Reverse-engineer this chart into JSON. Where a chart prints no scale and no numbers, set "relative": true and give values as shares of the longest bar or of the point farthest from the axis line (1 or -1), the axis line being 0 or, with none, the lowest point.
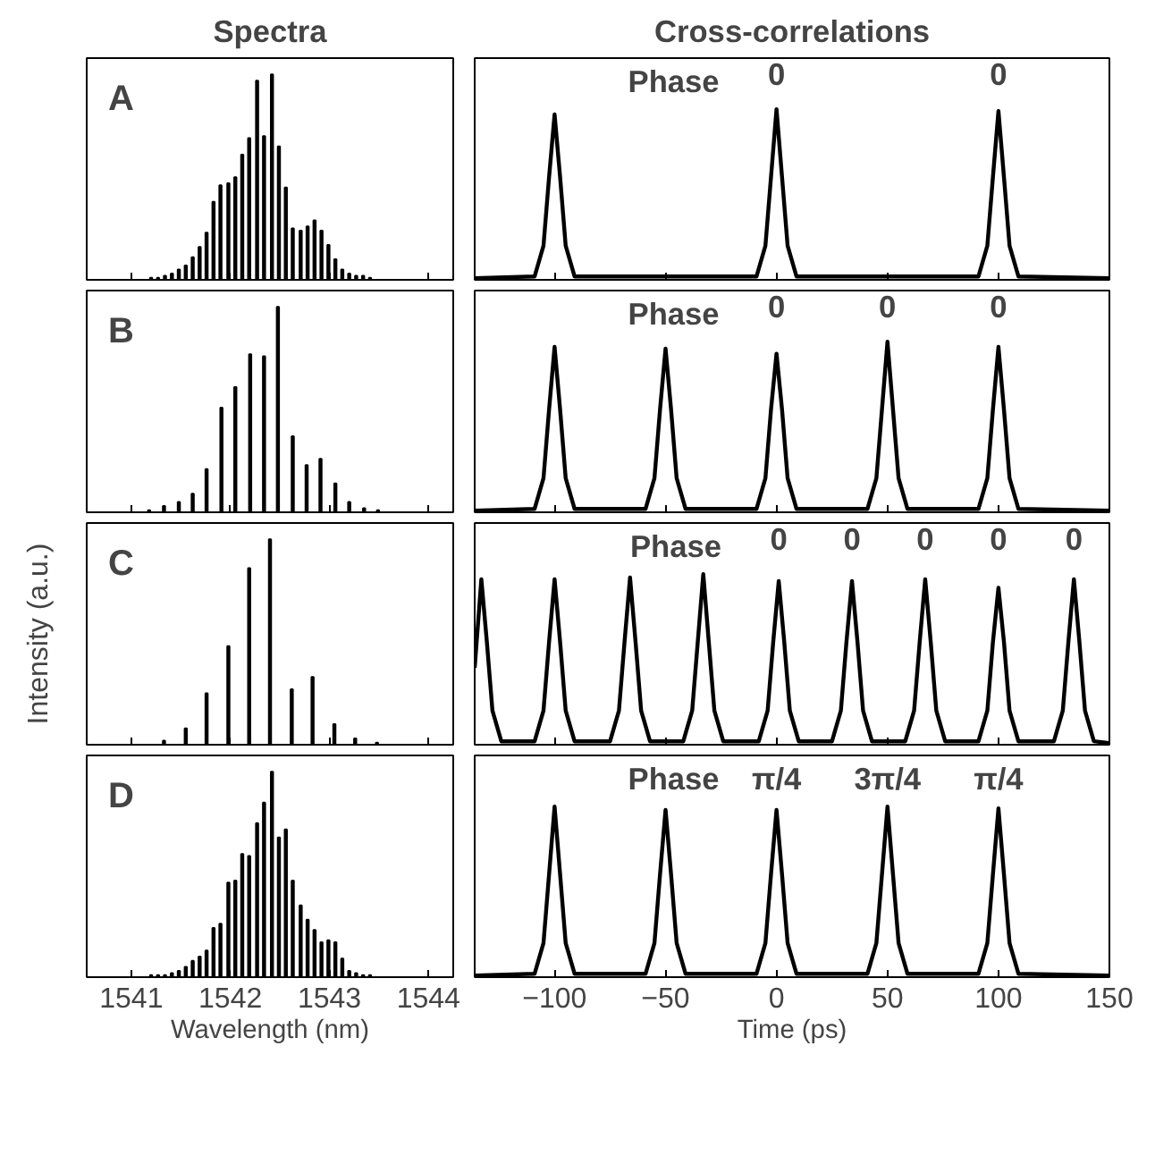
{
  "chart_data": [
    {
      "type": "bar",
      "title": "Spectra",
      "relative": true,
      "xlim": [
        1540.55,
        1544.25
      ],
      "xticks": [
        1541,
        1542,
        1543,
        1544
      ],
      "tick_labels": false,
      "annotations": [
        "A"
      ],
      "series": [
        {
          "color": "#000000",
          "x": [
            1541.2,
            1541.27,
            1541.34,
            1541.41,
            1541.48,
            1541.55,
            1541.62,
            1541.69,
            1541.76,
            1541.83,
            1541.9,
            1541.98,
            1542.05,
            1542.12,
            1542.19,
            1542.27,
            1542.34,
            1542.42,
            1542.49,
            1542.56,
            1542.63,
            1542.71,
            1542.78,
            1542.85,
            1542.92,
            1542.99,
            1543.06,
            1543.13,
            1543.2,
            1543.27,
            1543.34,
            1543.41
          ],
          "values": [
            0.01,
            0.01,
            0.02,
            0.03,
            0.05,
            0.07,
            0.11,
            0.16,
            0.23,
            0.38,
            0.46,
            0.47,
            0.5,
            0.61,
            0.69,
            0.97,
            0.7,
            1.0,
            0.65,
            0.45,
            0.25,
            0.24,
            0.26,
            0.29,
            0.24,
            0.17,
            0.1,
            0.05,
            0.03,
            0.02,
            0.02,
            0.01
          ]
        }
      ]
    },
    {
      "type": "line",
      "title": "Cross-correlations",
      "relative": true,
      "xlim": [
        -136,
        150
      ],
      "xticks": [
        -100,
        -50,
        0,
        50,
        100,
        150
      ],
      "tick_labels": false,
      "annotations": [
        "Phase",
        "0",
        "0"
      ],
      "series": [
        {
          "color": "#000000",
          "x": [
            -136,
            -109,
            -105,
            -102.5,
            -100,
            -97.5,
            -95,
            -91,
            -9,
            -5,
            -2.5,
            0,
            2.5,
            5,
            9,
            91,
            95,
            97.5,
            100,
            102.5,
            105,
            109,
            150
          ],
          "values": [
            0.01,
            0.02,
            0.2,
            0.6,
            0.97,
            0.6,
            0.2,
            0.02,
            0.02,
            0.2,
            0.6,
            1.0,
            0.6,
            0.2,
            0.02,
            0.02,
            0.2,
            0.6,
            0.99,
            0.6,
            0.2,
            0.02,
            0.01
          ]
        }
      ]
    },
    {
      "type": "bar",
      "relative": true,
      "xlim": [
        1540.55,
        1544.25
      ],
      "xticks": [
        1541,
        1542,
        1543,
        1544
      ],
      "tick_labels": false,
      "annotations": [
        "B"
      ],
      "series": [
        {
          "color": "#000000",
          "x": [
            1541.18,
            1541.33,
            1541.48,
            1541.62,
            1541.76,
            1541.91,
            1542.05,
            1542.2,
            1542.34,
            1542.48,
            1542.63,
            1542.77,
            1542.91,
            1543.06,
            1543.2,
            1543.35,
            1543.49
          ],
          "values": [
            0.01,
            0.03,
            0.05,
            0.09,
            0.21,
            0.51,
            0.61,
            0.77,
            0.76,
            1.0,
            0.37,
            0.23,
            0.26,
            0.14,
            0.05,
            0.02,
            0.01
          ]
        }
      ]
    },
    {
      "type": "line",
      "relative": true,
      "xlim": [
        -136,
        150
      ],
      "xticks": [
        -100,
        -50,
        0,
        50,
        100,
        150
      ],
      "tick_labels": false,
      "annotations": [
        "Phase",
        "0",
        "0",
        "0"
      ],
      "series": [
        {
          "color": "#000000",
          "x": [
            -136,
            -109,
            -105,
            -102.5,
            -100,
            -97.5,
            -95,
            -91,
            -59,
            -55,
            -52.5,
            -50,
            -47.5,
            -45,
            -41,
            -9,
            -5,
            -2.5,
            0,
            2.5,
            5,
            9,
            41,
            45,
            47.5,
            50,
            52.5,
            55,
            59,
            91,
            95,
            97.5,
            100,
            102.5,
            105,
            109,
            150
          ],
          "values": [
            0.01,
            0.02,
            0.2,
            0.6,
            0.97,
            0.6,
            0.2,
            0.02,
            0.02,
            0.2,
            0.6,
            0.96,
            0.6,
            0.2,
            0.02,
            0.02,
            0.2,
            0.6,
            0.93,
            0.6,
            0.2,
            0.02,
            0.02,
            0.2,
            0.6,
            1.0,
            0.6,
            0.2,
            0.02,
            0.02,
            0.2,
            0.6,
            0.97,
            0.6,
            0.2,
            0.02,
            0.01
          ]
        }
      ]
    },
    {
      "type": "bar",
      "ylabel": "Intensity (a.u.)",
      "relative": true,
      "xlim": [
        1540.55,
        1544.25
      ],
      "xticks": [
        1541,
        1542,
        1543,
        1544
      ],
      "tick_labels": false,
      "annotations": [
        "C"
      ],
      "series": [
        {
          "color": "#000000",
          "x": [
            1541.33,
            1541.55,
            1541.76,
            1541.98,
            1542.19,
            1542.4,
            1542.62,
            1542.83,
            1543.05,
            1543.26,
            1543.48
          ],
          "values": [
            0.02,
            0.08,
            0.25,
            0.48,
            0.86,
            1.0,
            0.27,
            0.33,
            0.1,
            0.03,
            0.01
          ]
        }
      ]
    },
    {
      "type": "line",
      "relative": true,
      "xlim": [
        -136,
        150
      ],
      "xticks": [
        -100,
        -50,
        0,
        50,
        100,
        150
      ],
      "tick_labels": false,
      "annotations": [
        "Phase",
        "0",
        "0",
        "0",
        "0",
        "0"
      ],
      "series": [
        {
          "color": "#000000",
          "x": [
            -136,
            -133,
            -130.5,
            -128,
            -124,
            -109,
            -105,
            -102.5,
            -100,
            -97.5,
            -95,
            -91,
            -75,
            -71,
            -68.5,
            -66,
            -63.5,
            -61,
            -57,
            -42,
            -38,
            -35.5,
            -33,
            -30.5,
            -28,
            -24,
            -8,
            -4,
            -1.5,
            1,
            3.5,
            6,
            10,
            25,
            29,
            31.5,
            34,
            36.5,
            39,
            43,
            58,
            62,
            64.5,
            67,
            69.5,
            72,
            76,
            91,
            95,
            97.5,
            100,
            102.5,
            105,
            109,
            125,
            129,
            131.5,
            134,
            136.5,
            139,
            143,
            150
          ],
          "values": [
            0.45,
            0.97,
            0.6,
            0.2,
            0.02,
            0.02,
            0.2,
            0.6,
            0.97,
            0.6,
            0.2,
            0.02,
            0.02,
            0.2,
            0.6,
            0.98,
            0.6,
            0.2,
            0.02,
            0.02,
            0.2,
            0.6,
            1.0,
            0.6,
            0.2,
            0.02,
            0.02,
            0.2,
            0.6,
            0.96,
            0.6,
            0.2,
            0.02,
            0.02,
            0.2,
            0.6,
            0.96,
            0.6,
            0.2,
            0.02,
            0.02,
            0.2,
            0.6,
            0.97,
            0.6,
            0.2,
            0.02,
            0.02,
            0.2,
            0.6,
            0.92,
            0.6,
            0.2,
            0.02,
            0.02,
            0.2,
            0.6,
            0.97,
            0.6,
            0.2,
            0.02,
            0.01
          ]
        }
      ]
    },
    {
      "type": "bar",
      "xlabel": "Wavelength (nm)",
      "relative": true,
      "xlim": [
        1540.55,
        1544.25
      ],
      "xticks": [
        1541,
        1542,
        1543,
        1544
      ],
      "tick_labels": "x",
      "annotations": [
        "D"
      ],
      "series": [
        {
          "color": "#000000",
          "x": [
            1541.2,
            1541.27,
            1541.34,
            1541.41,
            1541.48,
            1541.55,
            1541.62,
            1541.69,
            1541.76,
            1541.83,
            1541.9,
            1541.98,
            1542.05,
            1542.12,
            1542.19,
            1542.27,
            1542.34,
            1542.42,
            1542.49,
            1542.56,
            1542.63,
            1542.71,
            1542.78,
            1542.85,
            1542.92,
            1542.99,
            1543.06,
            1543.13,
            1543.2,
            1543.27,
            1543.34,
            1543.41
          ],
          "values": [
            0.01,
            0.01,
            0.01,
            0.02,
            0.03,
            0.05,
            0.08,
            0.1,
            0.13,
            0.24,
            0.26,
            0.46,
            0.47,
            0.6,
            0.59,
            0.75,
            0.85,
            1.0,
            0.68,
            0.72,
            0.47,
            0.35,
            0.28,
            0.23,
            0.17,
            0.18,
            0.17,
            0.09,
            0.03,
            0.02,
            0.01,
            0.01
          ]
        }
      ]
    },
    {
      "type": "line",
      "xlabel": "Time (ps)",
      "relative": true,
      "xlim": [
        -136,
        150
      ],
      "xticks": [
        -100,
        -50,
        0,
        50,
        100,
        150
      ],
      "tick_labels": "x",
      "annotations": [
        "Phase",
        "π/4",
        "3π/4",
        "π/4"
      ],
      "series": [
        {
          "color": "#000000",
          "x": [
            -136,
            -109,
            -105,
            -102.5,
            -100,
            -97.5,
            -95,
            -91,
            -59,
            -55,
            -52.5,
            -50,
            -47.5,
            -45,
            -41,
            -9,
            -5,
            -2.5,
            0,
            2.5,
            5,
            9,
            41,
            45,
            47.5,
            50,
            52.5,
            55,
            59,
            91,
            95,
            97.5,
            100,
            102.5,
            105,
            109,
            150
          ],
          "values": [
            0.01,
            0.02,
            0.2,
            0.6,
            1.0,
            0.6,
            0.2,
            0.02,
            0.02,
            0.2,
            0.6,
            0.98,
            0.6,
            0.2,
            0.02,
            0.02,
            0.2,
            0.6,
            0.98,
            0.6,
            0.2,
            0.02,
            0.02,
            0.2,
            0.6,
            1.0,
            0.6,
            0.2,
            0.02,
            0.02,
            0.2,
            0.6,
            0.99,
            0.6,
            0.2,
            0.02,
            0.01
          ]
        }
      ]
    }
  ]
}
